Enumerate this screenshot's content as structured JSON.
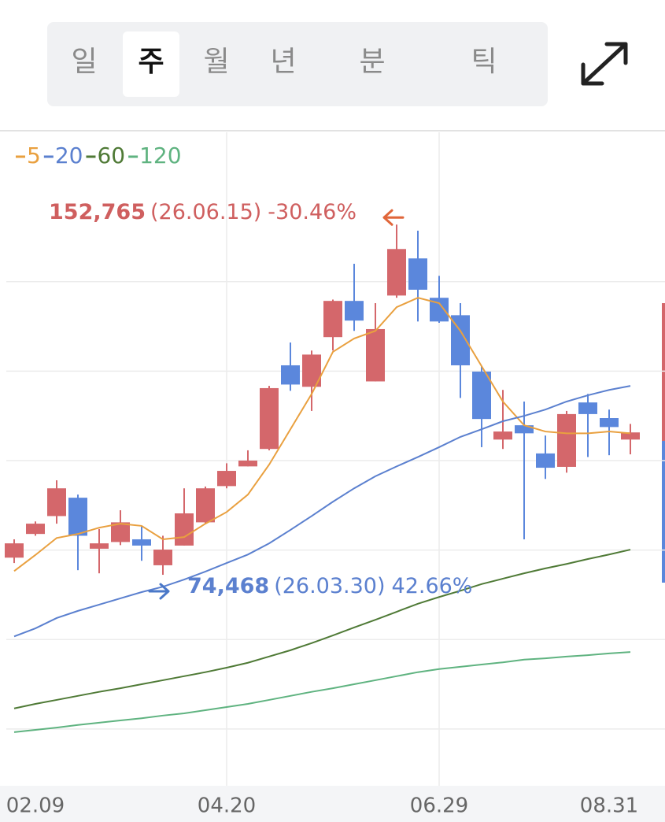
{
  "tabs": {
    "items": [
      "일",
      "주",
      "월",
      "년",
      "분",
      "틱"
    ],
    "selected": 1
  },
  "chart_data": {
    "type": "candlestick",
    "categories": [
      null,
      "02.09",
      null,
      null,
      null,
      null,
      null,
      null,
      null,
      null,
      "04.20",
      null,
      null,
      null,
      null,
      null,
      null,
      null,
      null,
      null,
      "06.29",
      null,
      null,
      null,
      null,
      null,
      null,
      null,
      "08.31",
      null
    ],
    "open": [
      78300,
      83600,
      87600,
      91700,
      80300,
      81800,
      82400,
      76600,
      81000,
      86200,
      94300,
      98700,
      102600,
      121300,
      116500,
      127600,
      135700,
      117700,
      136900,
      145200,
      136400,
      132500,
      119900,
      104700,
      107900,
      101600,
      98600,
      113000,
      109500,
      104700
    ],
    "high": [
      82400,
      86400,
      95600,
      92400,
      84700,
      88900,
      85400,
      83200,
      93800,
      94200,
      99400,
      102300,
      116700,
      126400,
      124600,
      136000,
      144000,
      135200,
      152765,
      151400,
      141300,
      135200,
      121100,
      115800,
      113200,
      105600,
      111100,
      114900,
      111400,
      108200
    ],
    "low": [
      77100,
      83200,
      85900,
      75500,
      74800,
      81100,
      77600,
      74468,
      81000,
      85900,
      93800,
      98700,
      102300,
      115600,
      111100,
      124600,
      129000,
      117700,
      136400,
      131100,
      130800,
      114000,
      103000,
      102600,
      82400,
      95900,
      97300,
      100800,
      101200,
      101400
    ],
    "close": [
      81500,
      85900,
      93800,
      83200,
      81500,
      86200,
      81000,
      80100,
      88200,
      93800,
      97700,
      100000,
      116200,
      117000,
      123700,
      135700,
      131300,
      129400,
      147300,
      138200,
      131100,
      121300,
      109300,
      106500,
      106100,
      98400,
      110400,
      110400,
      107500,
      106300
    ],
    "up_color": "#d4676b",
    "down_color": "#5b87dc",
    "series": [
      {
        "name": "5",
        "color": "#e9a03f",
        "values": [
          75300,
          78900,
          82700,
          83600,
          85000,
          85900,
          85400,
          82400,
          82900,
          85900,
          88500,
          92400,
          99100,
          107000,
          114900,
          124300,
          127300,
          129000,
          134300,
          136400,
          135200,
          129000,
          121100,
          113200,
          107900,
          106500,
          106100,
          106100,
          106500,
          106100
        ]
      },
      {
        "name": "20",
        "color": "#5b80cf",
        "values": [
          60700,
          62500,
          64800,
          66400,
          67800,
          69200,
          70600,
          71800,
          73400,
          75200,
          77100,
          79000,
          81500,
          84500,
          87600,
          90800,
          93800,
          96500,
          98700,
          100800,
          103000,
          105300,
          107000,
          108800,
          110000,
          111400,
          113200,
          114600,
          115800,
          116700
        ]
      },
      {
        "name": "60",
        "color": "#4f7a36",
        "values": [
          44600,
          45600,
          46500,
          47400,
          48300,
          49100,
          50000,
          50900,
          51800,
          52700,
          53700,
          54800,
          56200,
          57600,
          59200,
          60900,
          62700,
          64400,
          66200,
          68000,
          69500,
          70900,
          72400,
          73600,
          74800,
          75900,
          76900,
          78000,
          79000,
          80100
        ]
      },
      {
        "name": "120",
        "color": "#5fb380",
        "values": [
          39300,
          39800,
          40300,
          40900,
          41400,
          41900,
          42400,
          43000,
          43500,
          44200,
          44900,
          45600,
          46500,
          47400,
          48300,
          49100,
          50000,
          50900,
          51800,
          52700,
          53400,
          53900,
          54400,
          54900,
          55500,
          55800,
          56200,
          56500,
          56900,
          57200
        ]
      }
    ],
    "ylim": [
      27300,
      173400
    ],
    "ygrid": [
      140000,
      120000,
      100000,
      80000,
      60000,
      40000
    ],
    "annotations": [
      {
        "value": 152765,
        "label": "152,765",
        "date": "(26.06.15)",
        "change": "-30.46%",
        "color": "#cf5f5f"
      },
      {
        "value": 74468,
        "label": "74,468",
        "date": "(26.03.30)",
        "change": "42.66%",
        "color": "#5b80cf"
      }
    ]
  }
}
